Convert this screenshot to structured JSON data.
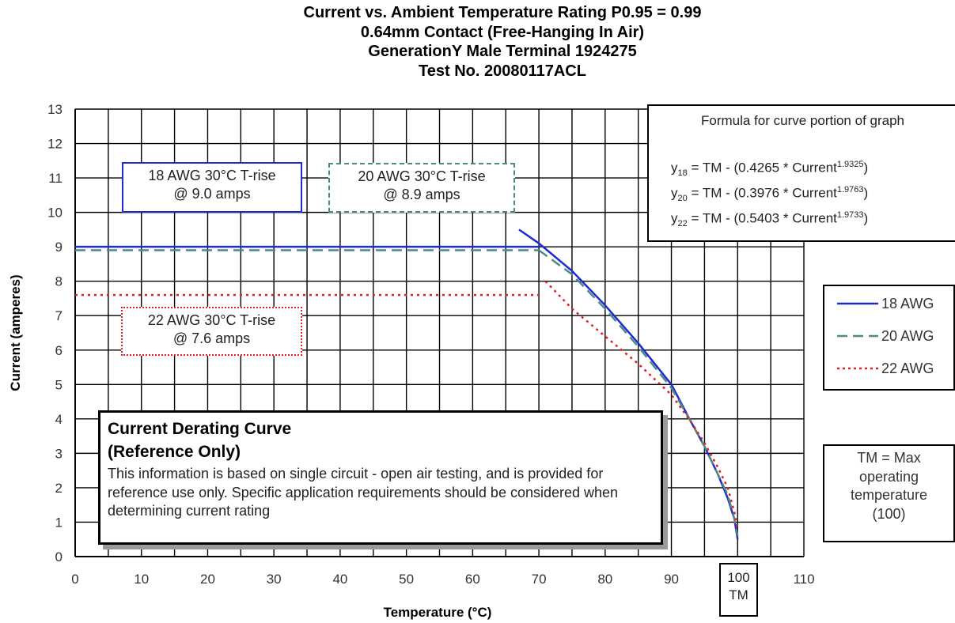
{
  "titles": [
    "Current vs. Ambient Temperature Rating P0.95 = 0.99",
    "0.64mm Contact (Free-Hanging In Air)",
    "GenerationY Male Terminal 1924275",
    "Test No. 20080117ACL"
  ],
  "chart_data": {
    "type": "line",
    "xlabel": "Temperature (°C)",
    "ylabel": "Current (amperes)",
    "xlim": [
      0,
      110
    ],
    "ylim": [
      0,
      13
    ],
    "xticks": [
      0,
      10,
      20,
      30,
      40,
      50,
      60,
      70,
      80,
      90,
      100,
      110
    ],
    "yticks": [
      0,
      1,
      2,
      3,
      4,
      5,
      6,
      7,
      8,
      9,
      10,
      11,
      12,
      13
    ],
    "grid": true,
    "legend_position": "right",
    "series": [
      {
        "name": "18 AWG",
        "color": "#1f2bd0",
        "style": "solid",
        "points": [
          [
            0,
            9.0
          ],
          [
            70,
            9.0
          ],
          [
            67,
            9.5
          ],
          [
            70,
            9.1
          ],
          [
            75,
            8.3
          ],
          [
            80,
            7.3
          ],
          [
            85,
            6.2
          ],
          [
            90,
            5.0
          ],
          [
            93,
            3.9
          ],
          [
            95,
            3.2
          ],
          [
            97,
            2.4
          ],
          [
            98.5,
            1.7
          ],
          [
            99.5,
            1.1
          ],
          [
            100,
            0.5
          ]
        ]
      },
      {
        "name": "20 AWG",
        "color": "#4c8a86",
        "style": "dashed",
        "points": [
          [
            0,
            8.9
          ],
          [
            70,
            8.9
          ],
          [
            70,
            8.9
          ],
          [
            75,
            8.2
          ],
          [
            80,
            7.2
          ],
          [
            85,
            6.1
          ],
          [
            90,
            4.9
          ],
          [
            93,
            3.9
          ],
          [
            95,
            3.2
          ],
          [
            97,
            2.4
          ],
          [
            98.5,
            1.8
          ],
          [
            99.5,
            1.1
          ],
          [
            100,
            0.6
          ]
        ]
      },
      {
        "name": "22 AWG",
        "color": "#e02020",
        "style": "dotted",
        "points": [
          [
            0,
            7.6
          ],
          [
            70,
            7.6
          ],
          [
            71,
            8.0
          ],
          [
            75,
            7.2
          ],
          [
            80,
            6.4
          ],
          [
            85,
            5.6
          ],
          [
            90,
            4.7
          ],
          [
            93,
            3.9
          ],
          [
            95,
            3.3
          ],
          [
            97,
            2.6
          ],
          [
            98.5,
            2.0
          ],
          [
            99.5,
            1.3
          ],
          [
            100,
            0.8
          ]
        ]
      }
    ],
    "annotations": {
      "box18": [
        "18 AWG 30°C T-rise",
        "@ 9.0 amps"
      ],
      "box20": [
        "20 AWG 30°C T-rise",
        "@ 8.9 amps"
      ],
      "box22": [
        "22 AWG 30°C T-rise",
        "@ 7.6 amps"
      ],
      "formula": {
        "title": "Formula for curve portion of graph",
        "rows": [
          {
            "y": "y",
            "sub": "18",
            "text": " = TM - (0.4265 * Current",
            "exp": "1.9325",
            "close": ")"
          },
          {
            "y": "y",
            "sub": "20",
            "text": " = TM - (0.3976 * Current",
            "exp": "1.9763",
            "close": ")"
          },
          {
            "y": "y",
            "sub": "22",
            "text": " = TM - (0.5403 * Current",
            "exp": "1.9733",
            "close": ")"
          }
        ]
      },
      "note": {
        "title_line1": "Current Derating Curve",
        "title_line2": "(Reference Only)",
        "body": "This information is based on single circuit - open air testing, and is provided for reference use only.  Specific application requirements should be considered when determining current rating"
      },
      "tm_note": [
        "TM = Max",
        "operating",
        "temperature",
        "(100)"
      ],
      "tm_tick": [
        "100",
        "TM"
      ]
    }
  }
}
